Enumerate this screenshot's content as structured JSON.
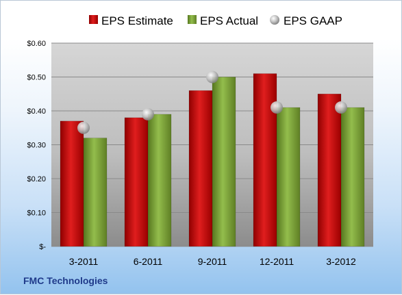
{
  "company": "FMC Technologies",
  "chart_data": {
    "type": "bar",
    "categories": [
      "3-2011",
      "6-2011",
      "9-2011",
      "12-2011",
      "3-2012"
    ],
    "series": [
      {
        "name": "EPS Estimate",
        "kind": "bar",
        "color": "#c00000",
        "values": [
          0.37,
          0.38,
          0.46,
          0.51,
          0.45
        ]
      },
      {
        "name": "EPS Actual",
        "kind": "bar",
        "color": "#7aa33a",
        "values": [
          0.32,
          0.39,
          0.5,
          0.41,
          0.41
        ]
      },
      {
        "name": "EPS GAAP",
        "kind": "marker",
        "color": "#b0b0b0",
        "values": [
          0.35,
          0.39,
          0.5,
          0.41,
          0.41
        ]
      }
    ],
    "ylim": [
      0,
      0.6
    ],
    "yticks": [
      0,
      0.1,
      0.2,
      0.3,
      0.4,
      0.5,
      0.6
    ],
    "ytick_labels": [
      "$-",
      "$0.10",
      "$0.20",
      "$0.30",
      "$0.40",
      "$0.50",
      "$0.60"
    ],
    "grid": true,
    "legend_position": "top"
  }
}
